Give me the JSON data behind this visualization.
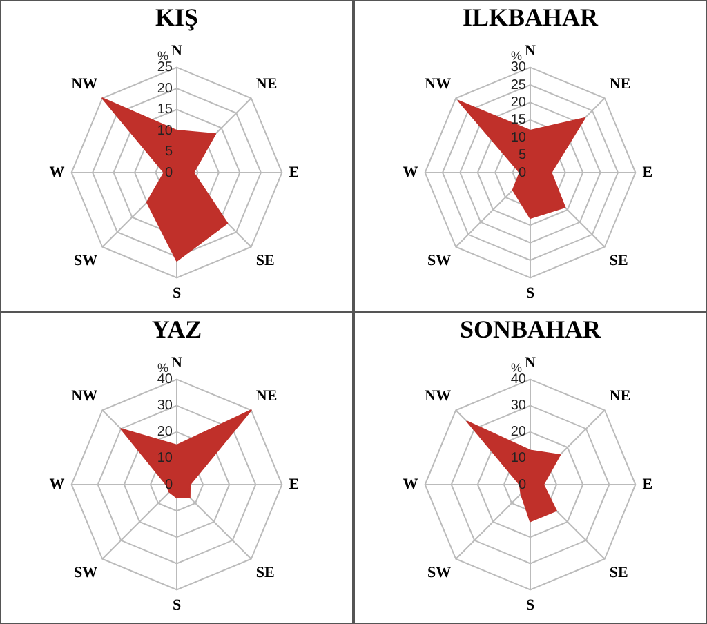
{
  "chart_data": [
    {
      "type": "radar",
      "title": "KIŞ",
      "ylabel": "%",
      "categories": [
        "N",
        "NE",
        "E",
        "SE",
        "S",
        "SW",
        "W",
        "NW"
      ],
      "series": [
        {
          "color": "#c0302a",
          "values": [
            10,
            13,
            4,
            17,
            21,
            10,
            3,
            25
          ]
        }
      ],
      "ylim": [
        0,
        25
      ],
      "yticks": [
        0,
        5,
        10,
        15,
        20,
        25
      ],
      "grid": true,
      "marker": "none"
    },
    {
      "type": "radar",
      "title": "ILKBAHAR",
      "ylabel": "%",
      "categories": [
        "N",
        "NE",
        "E",
        "SE",
        "S",
        "SW",
        "W",
        "NW"
      ],
      "series": [
        {
          "color": "#c0302a",
          "values": [
            12,
            22,
            6,
            14,
            13,
            7,
            3,
            29
          ]
        }
      ],
      "ylim": [
        0,
        30
      ],
      "yticks": [
        0,
        5,
        10,
        15,
        20,
        25,
        30
      ],
      "grid": true,
      "marker": "none"
    },
    {
      "type": "radar",
      "title": "YAZ",
      "ylabel": "%",
      "categories": [
        "N",
        "NE",
        "E",
        "SE",
        "S",
        "SW",
        "W",
        "NW"
      ],
      "series": [
        {
          "color": "#c0302a",
          "values": [
            15,
            40,
            5,
            7,
            5,
            4,
            4,
            30
          ]
        }
      ],
      "ylim": [
        0,
        40
      ],
      "yticks": [
        0,
        10,
        20,
        30,
        40
      ],
      "grid": true,
      "marker": "none"
    },
    {
      "type": "radar",
      "title": "SONBAHAR",
      "ylabel": "%",
      "categories": [
        "N",
        "NE",
        "E",
        "SE",
        "S",
        "SW",
        "W",
        "NW"
      ],
      "series": [
        {
          "color": "#c0302a",
          "values": [
            13,
            16,
            5,
            14,
            14,
            5,
            4,
            34
          ]
        }
      ],
      "ylim": [
        0,
        40
      ],
      "yticks": [
        0,
        10,
        20,
        30,
        40
      ],
      "grid": true,
      "marker": "none"
    }
  ]
}
